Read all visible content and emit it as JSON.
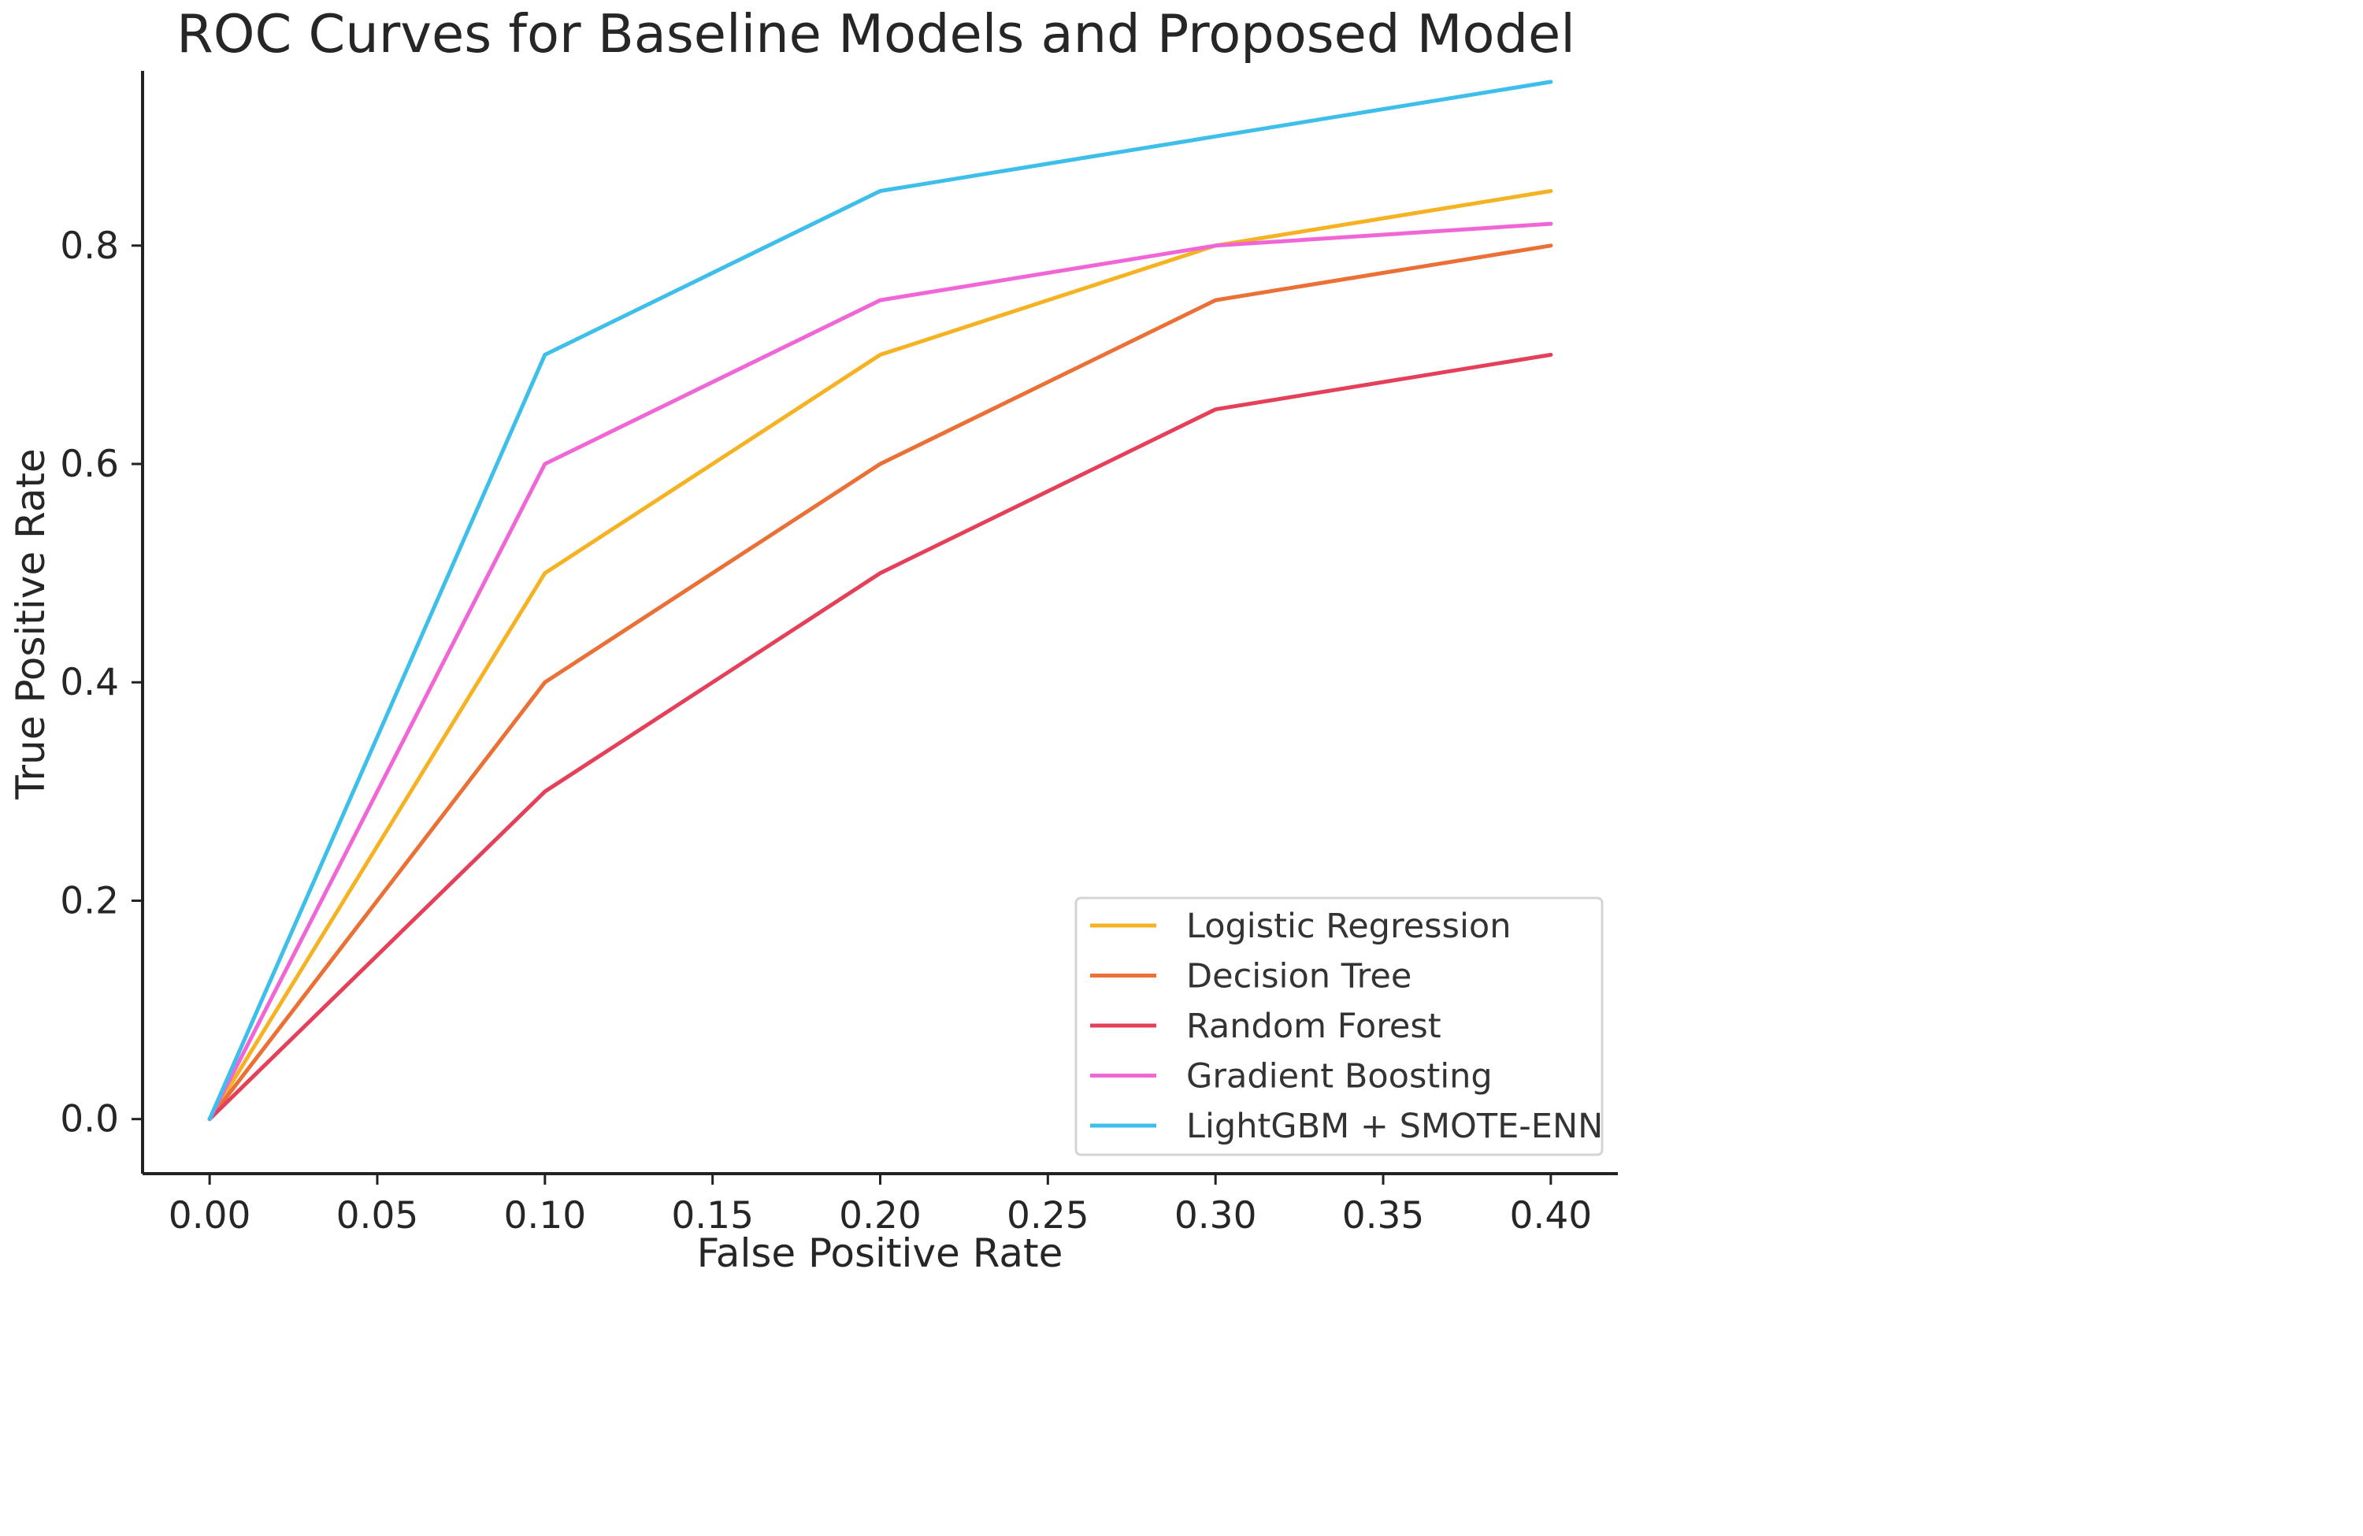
{
  "chart_data": {
    "type": "line",
    "title": "ROC Curves for Baseline Models and Proposed Model",
    "xlabel": "False Positive Rate",
    "ylabel": "True Positive Rate",
    "xlim": [
      -0.02,
      0.42
    ],
    "ylim": [
      -0.05,
      0.96
    ],
    "xticks": [
      0.0,
      0.05,
      0.1,
      0.15,
      0.2,
      0.25,
      0.3,
      0.35,
      0.4
    ],
    "xtick_labels": [
      "0.00",
      "0.05",
      "0.10",
      "0.15",
      "0.20",
      "0.25",
      "0.30",
      "0.35",
      "0.40"
    ],
    "yticks": [
      0.0,
      0.2,
      0.4,
      0.6,
      0.8
    ],
    "ytick_labels": [
      "0.0",
      "0.2",
      "0.4",
      "0.6",
      "0.8"
    ],
    "grid": false,
    "legend_position": "bottom-right",
    "x": [
      0.0,
      0.1,
      0.2,
      0.3,
      0.4
    ],
    "series": [
      {
        "name": "Logistic Regression",
        "color": "#F5B323",
        "values": [
          0.0,
          0.5,
          0.7,
          0.8,
          0.85
        ]
      },
      {
        "name": "Decision Tree",
        "color": "#EA7035",
        "values": [
          0.0,
          0.4,
          0.6,
          0.75,
          0.8
        ]
      },
      {
        "name": "Random Forest",
        "color": "#E5405A",
        "values": [
          0.0,
          0.3,
          0.5,
          0.65,
          0.7
        ]
      },
      {
        "name": "Gradient Boosting",
        "color": "#F066D6",
        "values": [
          0.0,
          0.6,
          0.75,
          0.8,
          0.82
        ]
      },
      {
        "name": "LightGBM + SMOTE-ENN",
        "color": "#3DBEEB",
        "values": [
          0.0,
          0.7,
          0.85,
          0.9,
          0.95
        ]
      }
    ]
  }
}
